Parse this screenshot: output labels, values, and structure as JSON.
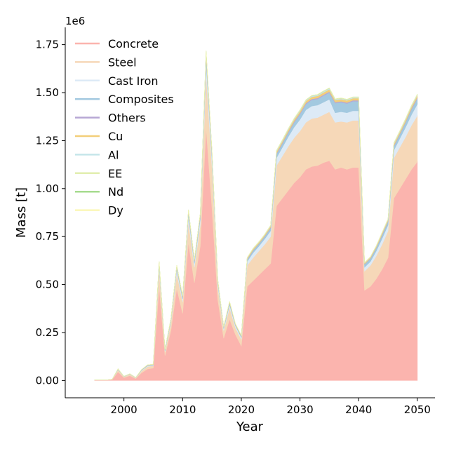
{
  "chart_data": {
    "type": "area",
    "stacked": true,
    "xlabel": "Year",
    "ylabel": "Mass [t]",
    "y_offset_label": "1e6",
    "xlim": [
      1990,
      2053
    ],
    "ylim": [
      -0.09,
      1.84
    ],
    "x_ticks": [
      2000,
      2010,
      2020,
      2030,
      2040,
      2050
    ],
    "y_ticks": [
      0.0,
      0.25,
      0.5,
      0.75,
      1.0,
      1.25,
      1.5,
      1.75
    ],
    "y_tick_labels": [
      "0.00",
      "0.25",
      "0.50",
      "0.75",
      "1.00",
      "1.25",
      "1.50",
      "1.75"
    ],
    "y_scale": 1000000,
    "legend_position": "top-left",
    "x": [
      1995,
      1996,
      1997,
      1998,
      1999,
      2000,
      2001,
      2002,
      2003,
      2004,
      2005,
      2006,
      2007,
      2008,
      2009,
      2010,
      2011,
      2012,
      2013,
      2014,
      2015,
      2016,
      2017,
      2018,
      2019,
      2020,
      2021,
      2022,
      2023,
      2024,
      2025,
      2026,
      2027,
      2028,
      2029,
      2030,
      2031,
      2032,
      2033,
      2034,
      2035,
      2036,
      2037,
      2038,
      2039,
      2040,
      2041,
      2042,
      2043,
      2044,
      2045,
      2046,
      2047,
      2048,
      2049,
      2050
    ],
    "series": [
      {
        "name": "Concrete",
        "color": "#fbb4ae",
        "values": [
          0.002,
          0.002,
          0.002,
          0.005,
          0.045,
          0.015,
          0.025,
          0.01,
          0.04,
          0.06,
          0.065,
          0.49,
          0.13,
          0.26,
          0.48,
          0.35,
          0.72,
          0.51,
          0.7,
          1.32,
          0.9,
          0.42,
          0.22,
          0.32,
          0.24,
          0.18,
          0.49,
          0.52,
          0.55,
          0.58,
          0.61,
          0.91,
          0.95,
          0.99,
          1.03,
          1.06,
          1.1,
          1.115,
          1.12,
          1.135,
          1.145,
          1.1,
          1.11,
          1.1,
          1.11,
          1.11,
          0.47,
          0.49,
          0.53,
          0.58,
          0.64,
          0.95,
          1.0,
          1.05,
          1.1,
          1.14
        ]
      },
      {
        "name": "Steel",
        "color": "#f6d8b8",
        "values": [
          0.0005,
          0.0005,
          0.0005,
          0.001,
          0.01,
          0.004,
          0.007,
          0.003,
          0.01,
          0.013,
          0.012,
          0.09,
          0.02,
          0.04,
          0.08,
          0.06,
          0.11,
          0.08,
          0.11,
          0.28,
          0.22,
          0.07,
          0.04,
          0.06,
          0.035,
          0.035,
          0.11,
          0.12,
          0.125,
          0.13,
          0.14,
          0.21,
          0.22,
          0.23,
          0.235,
          0.24,
          0.245,
          0.25,
          0.25,
          0.25,
          0.255,
          0.245,
          0.24,
          0.245,
          0.245,
          0.245,
          0.1,
          0.11,
          0.12,
          0.13,
          0.14,
          0.21,
          0.215,
          0.22,
          0.23,
          0.24
        ]
      },
      {
        "name": "Cast Iron",
        "color": "#ddeaf6",
        "values": [
          0.0001,
          0.0001,
          0.0001,
          0.0002,
          0.002,
          0.001,
          0.001,
          0.001,
          0.003,
          0.003,
          0.003,
          0.02,
          0.005,
          0.01,
          0.02,
          0.015,
          0.03,
          0.02,
          0.03,
          0.06,
          0.04,
          0.015,
          0.01,
          0.015,
          0.01,
          0.01,
          0.02,
          0.025,
          0.025,
          0.028,
          0.03,
          0.04,
          0.045,
          0.05,
          0.055,
          0.06,
          0.065,
          0.065,
          0.065,
          0.065,
          0.065,
          0.05,
          0.05,
          0.05,
          0.05,
          0.05,
          0.02,
          0.02,
          0.025,
          0.03,
          0.03,
          0.04,
          0.045,
          0.05,
          0.055,
          0.06
        ]
      },
      {
        "name": "Composites",
        "color": "#a3c9e0",
        "values": [
          0.0001,
          0.0001,
          0.0001,
          0.0002,
          0.002,
          0.001,
          0.001,
          0.001,
          0.002,
          0.003,
          0.003,
          0.01,
          0.004,
          0.006,
          0.01,
          0.008,
          0.015,
          0.01,
          0.015,
          0.03,
          0.02,
          0.01,
          0.005,
          0.008,
          0.005,
          0.005,
          0.01,
          0.012,
          0.012,
          0.013,
          0.015,
          0.02,
          0.02,
          0.022,
          0.025,
          0.028,
          0.03,
          0.032,
          0.032,
          0.034,
          0.035,
          0.05,
          0.05,
          0.048,
          0.05,
          0.05,
          0.015,
          0.015,
          0.016,
          0.018,
          0.018,
          0.02,
          0.022,
          0.025,
          0.028,
          0.03
        ]
      },
      {
        "name": "Others",
        "color": "#b7a7d4",
        "values": [
          0,
          0,
          0,
          0,
          0.0003,
          0.0001,
          0.0002,
          0.0001,
          0.0003,
          0.0004,
          0.0004,
          0.002,
          0.001,
          0.001,
          0.002,
          0.002,
          0.003,
          0.002,
          0.003,
          0.005,
          0.004,
          0.002,
          0.001,
          0.002,
          0.001,
          0.001,
          0.002,
          0.002,
          0.002,
          0.002,
          0.003,
          0.004,
          0.004,
          0.004,
          0.005,
          0.005,
          0.005,
          0.005,
          0.005,
          0.005,
          0.005,
          0.005,
          0.005,
          0.005,
          0.005,
          0.005,
          0.002,
          0.002,
          0.002,
          0.003,
          0.003,
          0.004,
          0.004,
          0.004,
          0.005,
          0.005
        ]
      },
      {
        "name": "Cu",
        "color": "#f3cf7a",
        "values": [
          0.0001,
          0.0001,
          0.0001,
          0.0001,
          0.001,
          0.0005,
          0.0007,
          0.0004,
          0.001,
          0.001,
          0.001,
          0.005,
          0.002,
          0.003,
          0.005,
          0.004,
          0.007,
          0.005,
          0.007,
          0.014,
          0.01,
          0.004,
          0.003,
          0.004,
          0.003,
          0.003,
          0.005,
          0.006,
          0.006,
          0.006,
          0.007,
          0.009,
          0.009,
          0.01,
          0.01,
          0.011,
          0.011,
          0.011,
          0.011,
          0.012,
          0.012,
          0.011,
          0.011,
          0.011,
          0.011,
          0.011,
          0.005,
          0.005,
          0.006,
          0.007,
          0.007,
          0.009,
          0.009,
          0.01,
          0.01,
          0.011
        ]
      },
      {
        "name": "Al",
        "color": "#c5e6ea",
        "values": [
          0,
          0,
          0,
          0.0001,
          0.0005,
          0.0002,
          0.0003,
          0.0002,
          0.0005,
          0.0005,
          0.0005,
          0.002,
          0.001,
          0.001,
          0.002,
          0.002,
          0.003,
          0.002,
          0.003,
          0.006,
          0.004,
          0.002,
          0.001,
          0.002,
          0.001,
          0.001,
          0.002,
          0.002,
          0.002,
          0.002,
          0.003,
          0.004,
          0.004,
          0.004,
          0.004,
          0.004,
          0.004,
          0.005,
          0.005,
          0.005,
          0.005,
          0.004,
          0.004,
          0.004,
          0.004,
          0.004,
          0.002,
          0.002,
          0.002,
          0.003,
          0.003,
          0.004,
          0.004,
          0.004,
          0.004,
          0.004
        ]
      },
      {
        "name": "EE",
        "color": "#e2eeb0",
        "values": [
          0,
          0,
          0,
          0,
          0.0002,
          0.0001,
          0.0001,
          0.0001,
          0.0002,
          0.0002,
          0.0002,
          0.001,
          0.0005,
          0.0006,
          0.001,
          0.001,
          0.0015,
          0.001,
          0.0015,
          0.003,
          0.002,
          0.001,
          0.0005,
          0.001,
          0.0005,
          0.0005,
          0.001,
          0.001,
          0.001,
          0.001,
          0.0012,
          0.0015,
          0.0015,
          0.0016,
          0.0017,
          0.0018,
          0.0018,
          0.0019,
          0.0019,
          0.002,
          0.002,
          0.0018,
          0.0018,
          0.0018,
          0.0018,
          0.0018,
          0.0008,
          0.0008,
          0.0009,
          0.001,
          0.001,
          0.0014,
          0.0015,
          0.0016,
          0.0017,
          0.0018
        ]
      },
      {
        "name": "Nd",
        "color": "#a6db8f",
        "values": [
          0,
          0,
          0,
          0,
          0.0001,
          0,
          0,
          0,
          0.0001,
          0.0001,
          0.0001,
          0.0003,
          0.0001,
          0.0002,
          0.0003,
          0.0002,
          0.0004,
          0.0003,
          0.0004,
          0.0008,
          0.0006,
          0.0002,
          0.0002,
          0.0002,
          0.0002,
          0.0002,
          0.0003,
          0.0003,
          0.0003,
          0.0003,
          0.0004,
          0.0005,
          0.0005,
          0.0005,
          0.0005,
          0.0006,
          0.0006,
          0.0006,
          0.0006,
          0.0006,
          0.0006,
          0.0006,
          0.0006,
          0.0006,
          0.0006,
          0.0006,
          0.0003,
          0.0003,
          0.0003,
          0.0003,
          0.0003,
          0.0004,
          0.0005,
          0.0005,
          0.0005,
          0.0005
        ]
      },
      {
        "name": "Dy",
        "color": "#fbf7b8",
        "values": [
          0,
          0,
          0,
          0,
          0,
          0,
          0,
          0,
          0,
          0,
          0,
          0.0001,
          0,
          0.0001,
          0.0001,
          0.0001,
          0.0001,
          0.0001,
          0.0001,
          0.0002,
          0.0002,
          0.0001,
          0,
          0.0001,
          0,
          0,
          0.0001,
          0.0001,
          0.0001,
          0.0001,
          0.0001,
          0.0001,
          0.0001,
          0.0001,
          0.0001,
          0.0001,
          0.0001,
          0.0001,
          0.0001,
          0.0001,
          0.0001,
          0.0001,
          0.0001,
          0.0001,
          0.0001,
          0.0001,
          0.0001,
          0.0001,
          0.0001,
          0.0001,
          0.0001,
          0.0001,
          0.0001,
          0.0001,
          0.0001,
          0.0001
        ]
      }
    ]
  }
}
